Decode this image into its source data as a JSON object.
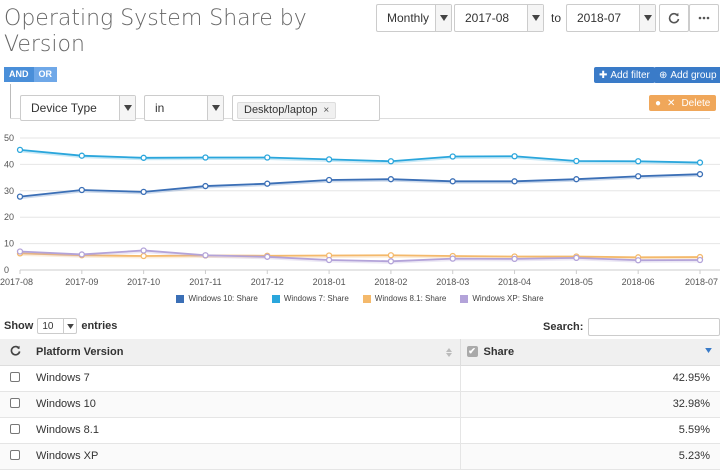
{
  "page": {
    "title": "Operating System Share by Version"
  },
  "controls": {
    "granularity": "Monthly",
    "from": "2017-08",
    "to_label": "to",
    "to": "2018-07"
  },
  "filters": {
    "and_label": "AND",
    "or_label": "OR",
    "field": "Device Type",
    "operator": "in",
    "value": "Desktop/laptop",
    "remove_symbol": "×",
    "add_filter_label": "Add filter",
    "add_group_label": "Add group",
    "delete_label": "Delete"
  },
  "chart_data": {
    "type": "line",
    "x": [
      "2017-08",
      "2017-09",
      "2017-10",
      "2017-11",
      "2017-12",
      "2018-01",
      "2018-02",
      "2018-03",
      "2018-04",
      "2018-05",
      "2018-06",
      "2018-07"
    ],
    "ylim": [
      0,
      50
    ],
    "yticks": [
      0,
      10,
      20,
      30,
      40,
      50
    ],
    "grid": true,
    "legend_placement": "bottom",
    "series": [
      {
        "name": "Windows 10: Share",
        "color": "#3b6fb6",
        "values": [
          27.8,
          30.3,
          29.6,
          31.8,
          32.7,
          34.1,
          34.4,
          33.6,
          33.6,
          34.4,
          35.5,
          36.3
        ]
      },
      {
        "name": "Windows 7: Share",
        "color": "#2aa6dc",
        "values": [
          45.5,
          43.3,
          42.5,
          42.6,
          42.6,
          41.9,
          41.2,
          43.0,
          43.1,
          41.3,
          41.2,
          40.7
        ]
      },
      {
        "name": "Windows 8.1: Share",
        "color": "#f4b96b",
        "values": [
          6.3,
          5.6,
          5.3,
          5.5,
          5.4,
          5.5,
          5.6,
          5.3,
          5.1,
          5.1,
          4.8,
          4.9
        ]
      },
      {
        "name": "Windows XP: Share",
        "color": "#b3a3d9",
        "values": [
          7.0,
          5.9,
          7.4,
          5.6,
          5.0,
          3.8,
          3.3,
          4.3,
          4.2,
          4.6,
          3.7,
          3.8
        ]
      }
    ]
  },
  "table": {
    "show_label": "Show",
    "entries_value": "10",
    "entries_label": "entries",
    "search_label": "Search:",
    "search_value": "",
    "headers": {
      "platform": "Platform Version",
      "share": "Share"
    },
    "rows": [
      {
        "platform": "Windows 7",
        "share": "42.95%"
      },
      {
        "platform": "Windows 10",
        "share": "32.98%"
      },
      {
        "platform": "Windows 8.1",
        "share": "5.59%"
      },
      {
        "platform": "Windows XP",
        "share": "5.23%"
      }
    ]
  }
}
